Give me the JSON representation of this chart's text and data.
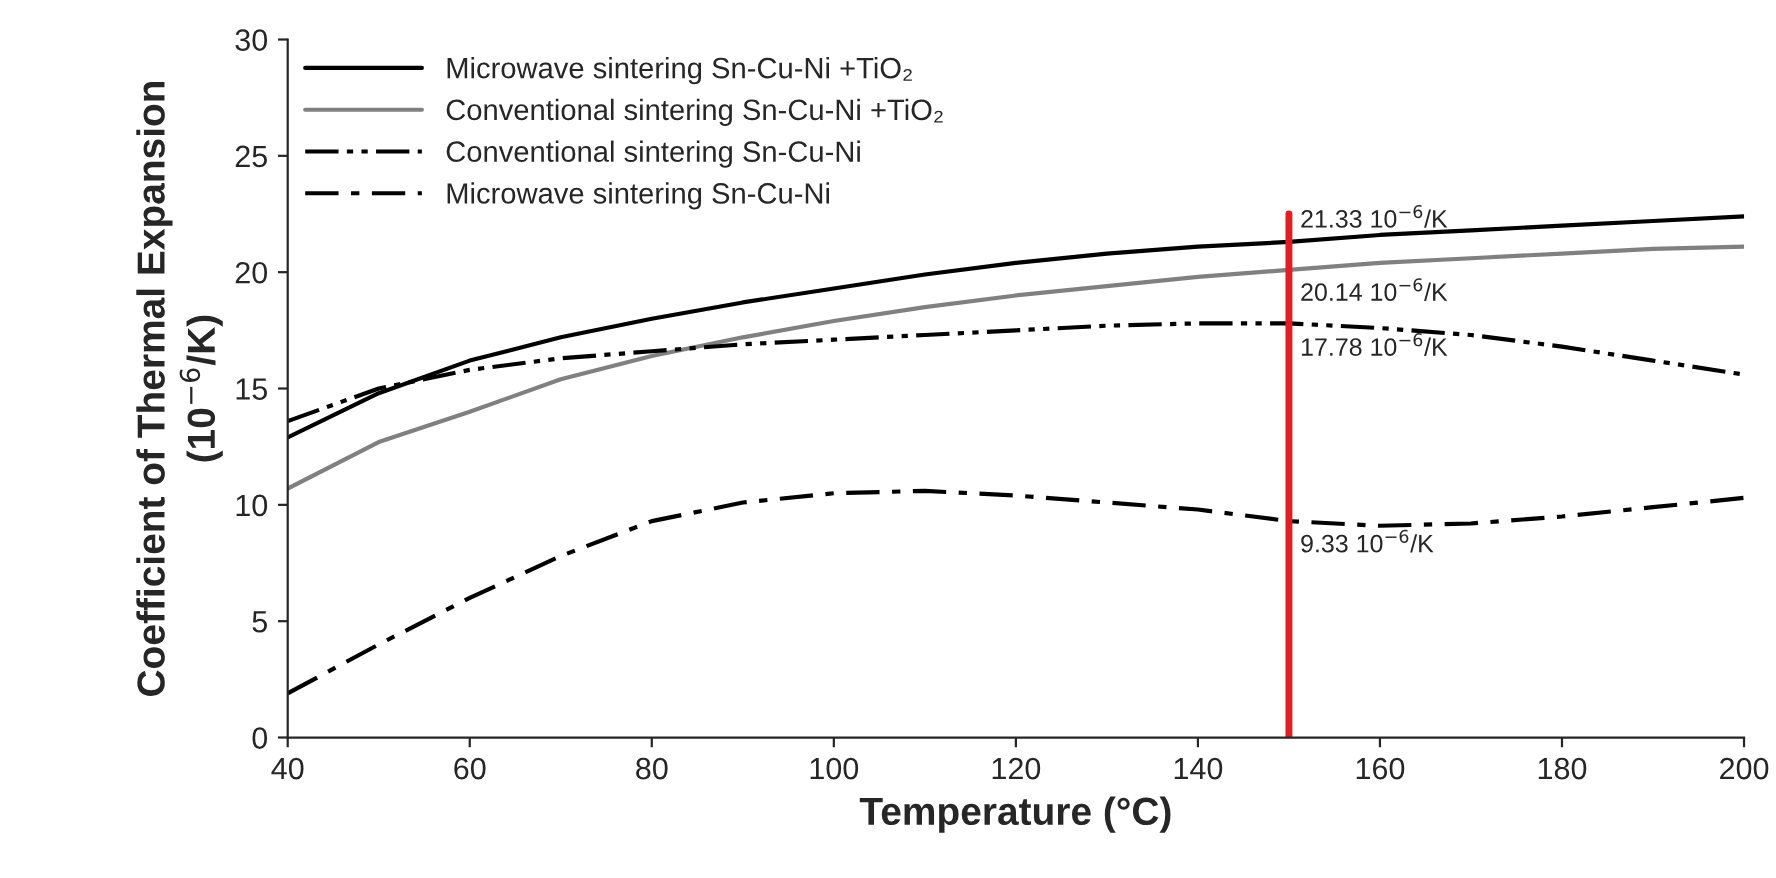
{
  "chart_data": {
    "type": "line",
    "xlabel": "Temperature (°C)",
    "ylabel": "Coefficient of Thermal Expansion\n(10$^{−6}$/K)",
    "xlim": [
      40,
      200
    ],
    "xticks": [
      40,
      60,
      80,
      100,
      120,
      140,
      160,
      180,
      200
    ],
    "ylim": [
      0,
      30
    ],
    "yticks": [
      0,
      5,
      10,
      15,
      20,
      25,
      30
    ],
    "grid": false,
    "legend": "top left",
    "series": [
      {
        "name": "Microwave sintering Sn-Cu-Ni +TiO₂",
        "color": "#000000",
        "line_style": "solid",
        "x": [
          40,
          50,
          60,
          70,
          80,
          90,
          100,
          110,
          120,
          130,
          140,
          150,
          160,
          170,
          180,
          190,
          200
        ],
        "values": [
          12.9,
          14.8,
          16.2,
          17.2,
          18.0,
          18.7,
          19.3,
          19.9,
          20.4,
          20.8,
          21.1,
          21.3,
          21.6,
          21.8,
          22.0,
          22.2,
          22.4
        ]
      },
      {
        "name": "Conventional sintering Sn-Cu-Ni +TiO₂",
        "color": "#808080",
        "line_style": "solid",
        "x": [
          40,
          50,
          60,
          70,
          80,
          90,
          100,
          110,
          120,
          130,
          140,
          150,
          160,
          170,
          180,
          190,
          200
        ],
        "values": [
          10.7,
          12.7,
          14.0,
          15.4,
          16.4,
          17.2,
          17.9,
          18.5,
          19.0,
          19.4,
          19.8,
          20.1,
          20.4,
          20.6,
          20.8,
          21.0,
          21.1
        ]
      },
      {
        "name": "Conventional sintering Sn-Cu-Ni",
        "color": "#000000",
        "line_style": "dashdotdot",
        "x": [
          40,
          50,
          60,
          70,
          80,
          90,
          100,
          110,
          120,
          130,
          140,
          150,
          160,
          170,
          180,
          190,
          200
        ],
        "values": [
          13.6,
          15.0,
          15.8,
          16.3,
          16.6,
          16.9,
          17.1,
          17.3,
          17.5,
          17.7,
          17.8,
          17.8,
          17.6,
          17.3,
          16.8,
          16.2,
          15.6
        ]
      },
      {
        "name": "Microwave sintering Sn-Cu-Ni",
        "color": "#000000",
        "line_style": "dashdot",
        "x": [
          40,
          50,
          60,
          70,
          80,
          90,
          100,
          110,
          120,
          130,
          140,
          150,
          160,
          170,
          180,
          190,
          200
        ],
        "values": [
          1.9,
          4.0,
          6.0,
          7.8,
          9.3,
          10.1,
          10.5,
          10.6,
          10.4,
          10.1,
          9.8,
          9.3,
          9.1,
          9.2,
          9.5,
          9.9,
          10.3
        ]
      }
    ],
    "ref_lines": [
      {
        "axis": "x",
        "value": 150,
        "color": "#e02020",
        "line_style": "solid"
      }
    ],
    "annotations": [
      {
        "text": "21.33 10$^{−6}$/K",
        "y": 21.33
      },
      {
        "text": "20.14 10$^{−6}$/K",
        "y": 20.14
      },
      {
        "text": "17.78 10$^{−6}$/K",
        "y": 17.78
      },
      {
        "text": "9.33 10$^{−6}$/K",
        "y": 9.33
      }
    ]
  }
}
